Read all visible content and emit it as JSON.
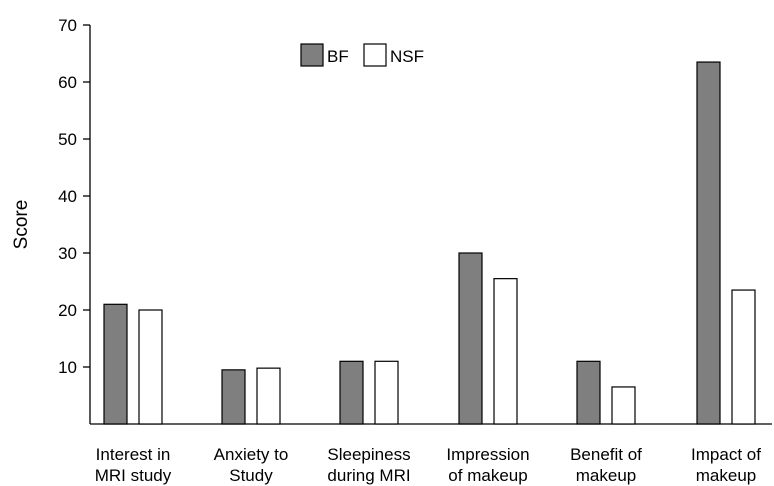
{
  "chart_data": {
    "type": "bar",
    "title": "",
    "xlabel": "",
    "ylabel": "Score",
    "ylim": [
      0,
      70
    ],
    "yticks": [
      10,
      20,
      30,
      40,
      50,
      60,
      70
    ],
    "grid": false,
    "legend_position": "top-center",
    "categories": [
      [
        "Interest in",
        "MRI study"
      ],
      [
        "Anxiety to",
        "Study"
      ],
      [
        "Sleepiness",
        "during MRI"
      ],
      [
        "Impression",
        "of makeup"
      ],
      [
        "Benefit of",
        "makeup"
      ],
      [
        "Impact of",
        "makeup"
      ]
    ],
    "series": [
      {
        "name": "BF",
        "color": "#7f7f7f",
        "values": [
          21,
          9.5,
          11,
          30,
          11,
          63.5
        ]
      },
      {
        "name": "NSF",
        "color": "#ffffff",
        "values": [
          20,
          9.8,
          11,
          25.5,
          6.5,
          23.5
        ]
      }
    ]
  }
}
